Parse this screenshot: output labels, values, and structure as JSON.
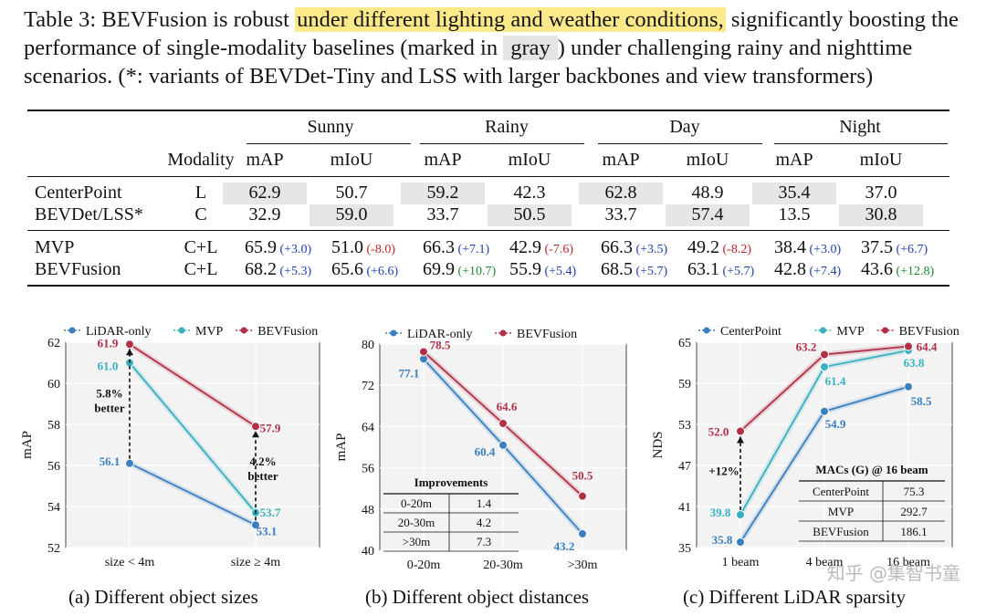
{
  "caption": {
    "part1": "Table 3: BEVFusion is robust ",
    "highlight": "under different lighting and weather conditions,",
    "part2": " significantly boosting the performance of single-modality baselines (marked in ",
    "gray_word": "gray",
    "part3": ") under challenging rainy and nighttime scenarios. (*: variants of BEVDet-Tiny and LSS with larger backbones and view transformers)"
  },
  "table": {
    "groups": [
      "Sunny",
      "Rainy",
      "Day",
      "Night"
    ],
    "modality_header": "Modality",
    "metrics": [
      "mAP",
      "mIoU",
      "mAP",
      "mIoU",
      "mAP",
      "mIoU",
      "mAP",
      "mIoU"
    ],
    "baseline_rows": [
      {
        "method": "CenterPoint",
        "modality": "L",
        "values": [
          "62.9",
          "50.7",
          "59.2",
          "42.3",
          "62.8",
          "48.9",
          "35.4",
          "37.0"
        ]
      },
      {
        "method": "BEVDet/LSS*",
        "modality": "C",
        "values": [
          "32.9",
          "59.0",
          "33.7",
          "50.5",
          "33.7",
          "57.4",
          "13.5",
          "30.8"
        ]
      }
    ],
    "fusion_rows": [
      {
        "method": "MVP",
        "modality": "C+L",
        "values": [
          "65.9",
          "51.0",
          "66.3",
          "42.9",
          "66.3",
          "49.2",
          "38.4",
          "37.5"
        ],
        "deltas": [
          "(+3.0)",
          "(-8.0)",
          "(+7.1)",
          "(-7.6)",
          "(+3.5)",
          "(-8.2)",
          "(+3.0)",
          "(+6.7)"
        ],
        "delta_kind": [
          "pos",
          "neg",
          "pos",
          "neg",
          "pos",
          "neg",
          "pos",
          "pos"
        ]
      },
      {
        "method": "BEVFusion",
        "modality": "C+L",
        "values": [
          "68.2",
          "65.6",
          "69.9",
          "55.9",
          "68.5",
          "63.1",
          "42.8",
          "43.6"
        ],
        "deltas": [
          "(+5.3)",
          "(+6.6)",
          "(+10.7)",
          "(+5.4)",
          "(+5.7)",
          "(+5.7)",
          "(+7.4)",
          "(+12.8)"
        ],
        "delta_kind": [
          "pos",
          "pos",
          "big",
          "pos",
          "pos",
          "pos",
          "pos",
          "big"
        ]
      }
    ]
  },
  "chart_data": [
    {
      "type": "line",
      "title": "(a) Different object sizes",
      "xlabel": "",
      "ylabel": "mAP",
      "categories": [
        "size < 4m",
        "size ≥ 4m"
      ],
      "ylim": [
        52,
        62
      ],
      "yticks": [
        "52",
        "54",
        "56",
        "58",
        "60",
        "62"
      ],
      "series": [
        {
          "name": "LiDAR-only",
          "color": "#3a7fc0",
          "values": [
            56.1,
            53.1
          ],
          "labels": [
            "56.1",
            "53.1"
          ]
        },
        {
          "name": "MVP",
          "color": "#3ab0c0",
          "values": [
            61.0,
            53.7
          ],
          "labels": [
            "61.0",
            "53.7"
          ]
        },
        {
          "name": "BEVFusion",
          "color": "#b03048",
          "values": [
            61.9,
            57.9
          ],
          "labels": [
            "61.9",
            "57.9"
          ]
        }
      ],
      "annotations": [
        "5.8%",
        "better",
        "4.2%",
        "better"
      ]
    },
    {
      "type": "line",
      "title": "(b) Different object distances",
      "xlabel": "",
      "ylabel": "mAP",
      "categories": [
        "0-20m",
        "20-30m",
        ">30m"
      ],
      "ylim": [
        40,
        80
      ],
      "yticks": [
        "40",
        "48",
        "56",
        "64",
        "72",
        "80"
      ],
      "series": [
        {
          "name": "LiDAR-only",
          "color": "#3a7fc0",
          "values": [
            77.1,
            60.4,
            43.2
          ],
          "labels": [
            "77.1",
            "60.4",
            "43.2"
          ]
        },
        {
          "name": "BEVFusion",
          "color": "#b03048",
          "values": [
            78.5,
            64.6,
            50.5
          ],
          "labels": [
            "78.5",
            "64.6",
            "50.5"
          ]
        }
      ],
      "inset_table": {
        "title": "Improvements",
        "rows": [
          [
            "0-20m",
            "1.4"
          ],
          [
            "20-30m",
            "4.2"
          ],
          [
            ">30m",
            "7.3"
          ]
        ]
      }
    },
    {
      "type": "line",
      "title": "(c) Different LiDAR sparsity",
      "xlabel": "",
      "ylabel": "NDS",
      "categories": [
        "1 beam",
        "4 beam",
        "16 beam"
      ],
      "ylim": [
        35,
        65
      ],
      "yticks": [
        "35",
        "41",
        "47",
        "53",
        "59",
        "65"
      ],
      "series": [
        {
          "name": "CenterPoint",
          "color": "#3a7fc0",
          "values": [
            35.8,
            54.9,
            58.5
          ],
          "labels": [
            "35.8",
            "54.9",
            "58.5"
          ]
        },
        {
          "name": "MVP",
          "color": "#3ab0c0",
          "values": [
            39.8,
            61.4,
            63.8
          ],
          "labels": [
            "39.8",
            "61.4",
            "63.8"
          ]
        },
        {
          "name": "BEVFusion",
          "color": "#b03048",
          "values": [
            52.0,
            63.2,
            64.4
          ],
          "labels": [
            "52.0",
            "63.2",
            "64.4"
          ]
        }
      ],
      "annotations": [
        "+12%"
      ],
      "inset_table": {
        "title": "MACs (G) @ 16 beam",
        "rows": [
          [
            "CenterPoint",
            "75.3"
          ],
          [
            "MVP",
            "292.7"
          ],
          [
            "BEVFusion",
            "186.1"
          ]
        ]
      }
    }
  ],
  "watermark": "知乎 @集智书童"
}
